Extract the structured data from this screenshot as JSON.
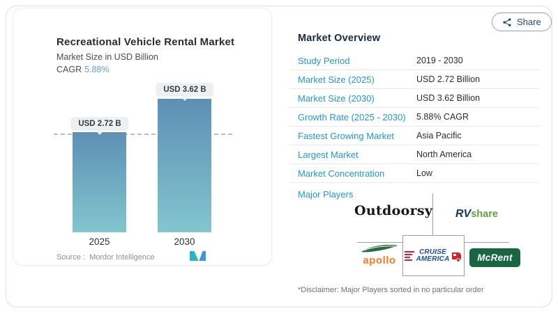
{
  "share": {
    "label": "Share"
  },
  "chart_panel": {
    "title": "Recreational Vehicle Rental Market",
    "subtitle": "Market Size in USD Billion",
    "cagr_label": "CAGR",
    "cagr_value": "5.88%",
    "bar_value_labels": [
      "USD 2.72 B",
      "USD 3.62 B"
    ],
    "x_labels": [
      "2025",
      "2030"
    ],
    "source_label": "Source :",
    "source_value": "Mordor Intelligence"
  },
  "chart_data": {
    "type": "bar",
    "title": "Recreational Vehicle Rental Market",
    "subtitle": "Market Size in USD Billion",
    "categories": [
      "2025",
      "2030"
    ],
    "values": [
      2.72,
      3.62
    ],
    "data_labels": [
      "USD 2.72 B",
      "USD 3.62 B"
    ],
    "unit": "USD Billion",
    "cagr": "5.88%",
    "ylim": [
      0,
      3.62
    ],
    "grid": "none; single dashed reference line at 2.72 (first bar top)",
    "legend": "none",
    "bar_color_top": "#5e8fb5",
    "bar_color_bottom": "#82c6ce",
    "source": "Mordor Intelligence"
  },
  "overview": {
    "title": "Market Overview",
    "rows": [
      {
        "label": "Study Period",
        "value": "2019 - 2030"
      },
      {
        "label": "Market Size (2025)",
        "value": "USD 2.72 Billion"
      },
      {
        "label": "Market Size (2030)",
        "value": "USD 3.62 Billion"
      },
      {
        "label": "Growth Rate (2025 - 2030)",
        "value": "5.88% CAGR"
      },
      {
        "label": "Fastest Growing Market",
        "value": "Asia Pacific"
      },
      {
        "label": "Largest Market",
        "value": "North America"
      },
      {
        "label": "Market Concentration",
        "value": "Low"
      }
    ],
    "major_players_label": "Major Players",
    "disclaimer": "*Disclaimer: Major Players sorted in no particular order"
  },
  "players": {
    "outdoorsy": "Outdoorsy",
    "rvshare_rv": "RV",
    "rvshare_share": "share",
    "apollo": "apollo",
    "cruise_line1": "CRUISE",
    "cruise_line2": "AMERICA",
    "mcrent": "McRent"
  },
  "colors": {
    "accent_blue": "#2396ce",
    "heading_navy": "#182944",
    "cagr_blue": "#5f9fd6",
    "bar_gradient_top": "#5e8fb5",
    "bar_gradient_bottom": "#82c6ce",
    "pill_bg": "#edf0f0",
    "divider": "#e7e8ea",
    "connector_gray": "#9aa0a3",
    "share_navy": "#1d4765",
    "apollo_orange": "#f47c20",
    "apollo_green": "#2a6b3f",
    "rvshare_navy": "#16325c",
    "rvshare_green": "#5fa13e",
    "cruise_red": "#d2232a",
    "cruise_blue": "#1b4fa1",
    "mcrent_green": "#186643",
    "mi_teal": "#2ab5c3",
    "mi_blue": "#3e99cf"
  }
}
